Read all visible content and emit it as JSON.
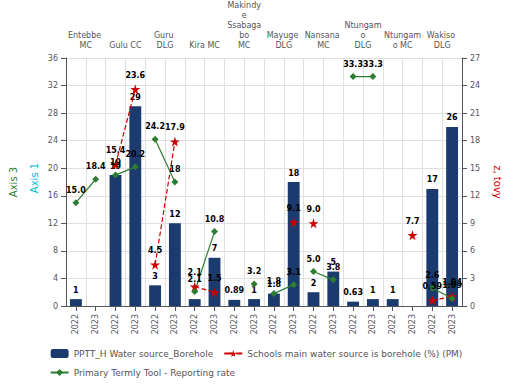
{
  "chart_data": {
    "type": "bar",
    "categories": [
      "2022",
      "2023",
      "2022",
      "2023",
      "2022",
      "2023",
      "2022",
      "2023",
      "2022",
      "2023",
      "2022",
      "2023",
      "2022",
      "2023",
      "2022",
      "2023",
      "2022",
      "2023",
      "2022",
      "2023"
    ],
    "group_labels": [
      "Entebbe MC",
      "Gulu CC",
      "Guru DLG",
      "Kira MC",
      "Makindye\nSsabagabo\nMC",
      "Mayuge DLG",
      "Nansana MC",
      "Ntungamo\nDLG",
      "Ntungamo MC",
      "Wakiso DLG"
    ],
    "ylabel": "Axis 3",
    "y2label": "z, tovy",
    "annotations": [
      {
        "text": "Axis 1",
        "color": "#00bcd4"
      }
    ],
    "ylim": [
      0,
      36
    ],
    "yticks": [
      0,
      4,
      8,
      12,
      16,
      20,
      24,
      28,
      32,
      36
    ],
    "y2lim": [
      0,
      27
    ],
    "y2ticks": [
      0,
      3,
      6,
      9,
      12,
      15,
      18,
      21,
      24,
      27
    ],
    "grid": true,
    "legend": "bottom",
    "data_labels": true,
    "series": [
      {
        "name": "PPTT_H Water source_Borehole",
        "type": "bar",
        "color": "#1b3a6e",
        "values": [
          1,
          null,
          19,
          29,
          3,
          12,
          1,
          7,
          0.89,
          1,
          1.8,
          18,
          2,
          5,
          0.63,
          1,
          1,
          null,
          17,
          26
        ],
        "value_labels": [
          "1",
          null,
          "19",
          "29",
          "3",
          "12",
          "1",
          "7",
          "0.89",
          "1",
          "1.8",
          "18",
          "2",
          "5",
          "0.63",
          "1",
          "1",
          null,
          "17",
          "26"
        ]
      },
      {
        "name": "Schools main water source is borehole (%) (PM)",
        "type": "line",
        "axis": "y2",
        "color": "#cc0000",
        "marker": "star",
        "line_style": "dashed",
        "values": [
          null,
          null,
          15.4,
          23.6,
          4.5,
          17.9,
          2.1,
          1.5,
          null,
          null,
          null,
          9.1,
          9.0,
          null,
          null,
          null,
          null,
          7.7,
          0.59,
          1.04
        ],
        "value_labels": [
          null,
          null,
          "15.4",
          "23.6",
          "4.5",
          "17.9",
          "2.1",
          "1.5",
          null,
          null,
          null,
          "9.1",
          "9.0",
          null,
          null,
          null,
          null,
          "7.7",
          "0.59",
          "1.04"
        ]
      },
      {
        "name": "Primary Termly Tool - Reporting rate",
        "type": "line",
        "color": "#2e7d32",
        "marker": "diamond",
        "line_style": "solid",
        "values": [
          15.0,
          18.4,
          19.0,
          20.2,
          24.2,
          18.0,
          2.1,
          10.8,
          null,
          3.2,
          1.8,
          3.1,
          5.0,
          3.8,
          33.3,
          33.3,
          null,
          null,
          2.6,
          1.09
        ],
        "value_labels": [
          "15.0",
          "18.4",
          "19",
          "20.2",
          "24.2",
          "18",
          "2.1",
          "10.8",
          null,
          "3.2",
          "1.8",
          "3.1",
          "5.0",
          "3.8",
          "33.3",
          "33.3",
          null,
          null,
          "2.6",
          "1.09"
        ]
      }
    ]
  }
}
